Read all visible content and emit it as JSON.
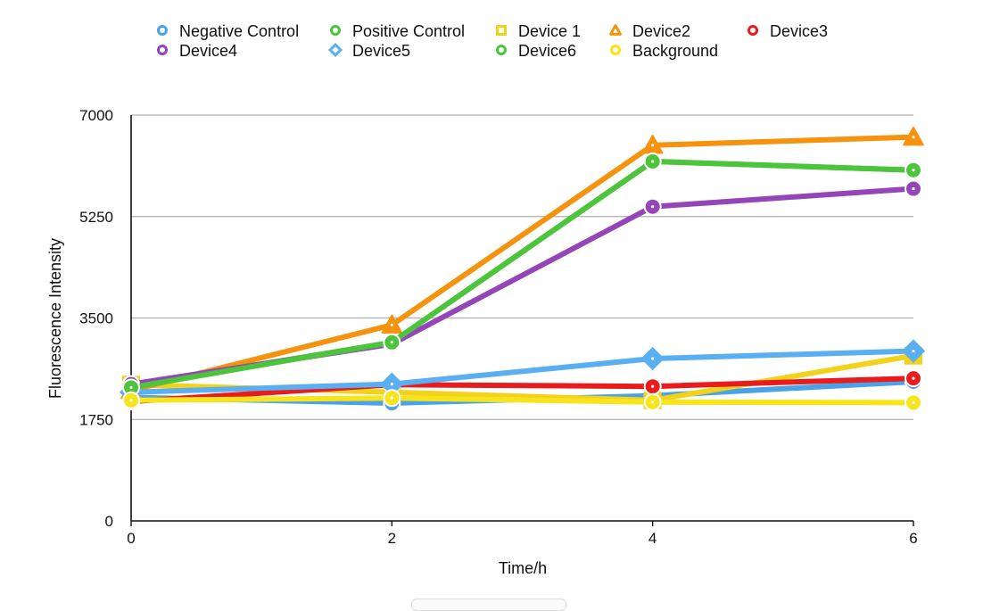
{
  "chart_data": {
    "type": "line",
    "xlabel": "Time/h",
    "ylabel": "Fluorescence Intensity",
    "x": [
      0,
      2,
      4,
      6
    ],
    "xticks": [
      0,
      2,
      4,
      6
    ],
    "yticks": [
      0,
      1750,
      3500,
      5250,
      7000
    ],
    "xlim": [
      0,
      6
    ],
    "ylim": [
      0,
      7000
    ],
    "grid": "horizontal",
    "legend_position": "top",
    "series": [
      {
        "name": "Negative Control",
        "color": "#4aa3e8",
        "marker": "circle",
        "values": [
          2130,
          2030,
          2160,
          2400
        ]
      },
      {
        "name": "Positive Control",
        "color": "#4cc43c",
        "marker": "circle",
        "values": [
          2330,
          3080,
          6200,
          6050
        ]
      },
      {
        "name": "Device 1",
        "color": "#f2d21a",
        "marker": "square",
        "values": [
          2350,
          2220,
          2080,
          2850
        ]
      },
      {
        "name": "Device2",
        "color": "#f5930f",
        "marker": "triangle",
        "values": [
          2250,
          3380,
          6480,
          6620
        ]
      },
      {
        "name": "Device3",
        "color": "#e81c1c",
        "marker": "circle",
        "values": [
          2060,
          2350,
          2320,
          2460
        ]
      },
      {
        "name": "Device4",
        "color": "#9446b8",
        "marker": "circle",
        "values": [
          2360,
          3050,
          5420,
          5730
        ]
      },
      {
        "name": "Device5",
        "color": "#5aaef2",
        "marker": "diamond",
        "values": [
          2220,
          2360,
          2800,
          2930
        ]
      },
      {
        "name": "Device6",
        "color": "#4cc43c",
        "marker": "circle",
        "values": [
          2300,
          3080,
          6200,
          6050
        ]
      },
      {
        "name": "Background",
        "color": "#f7e41c",
        "marker": "circle",
        "values": [
          2080,
          2120,
          2050,
          2040
        ]
      }
    ]
  }
}
